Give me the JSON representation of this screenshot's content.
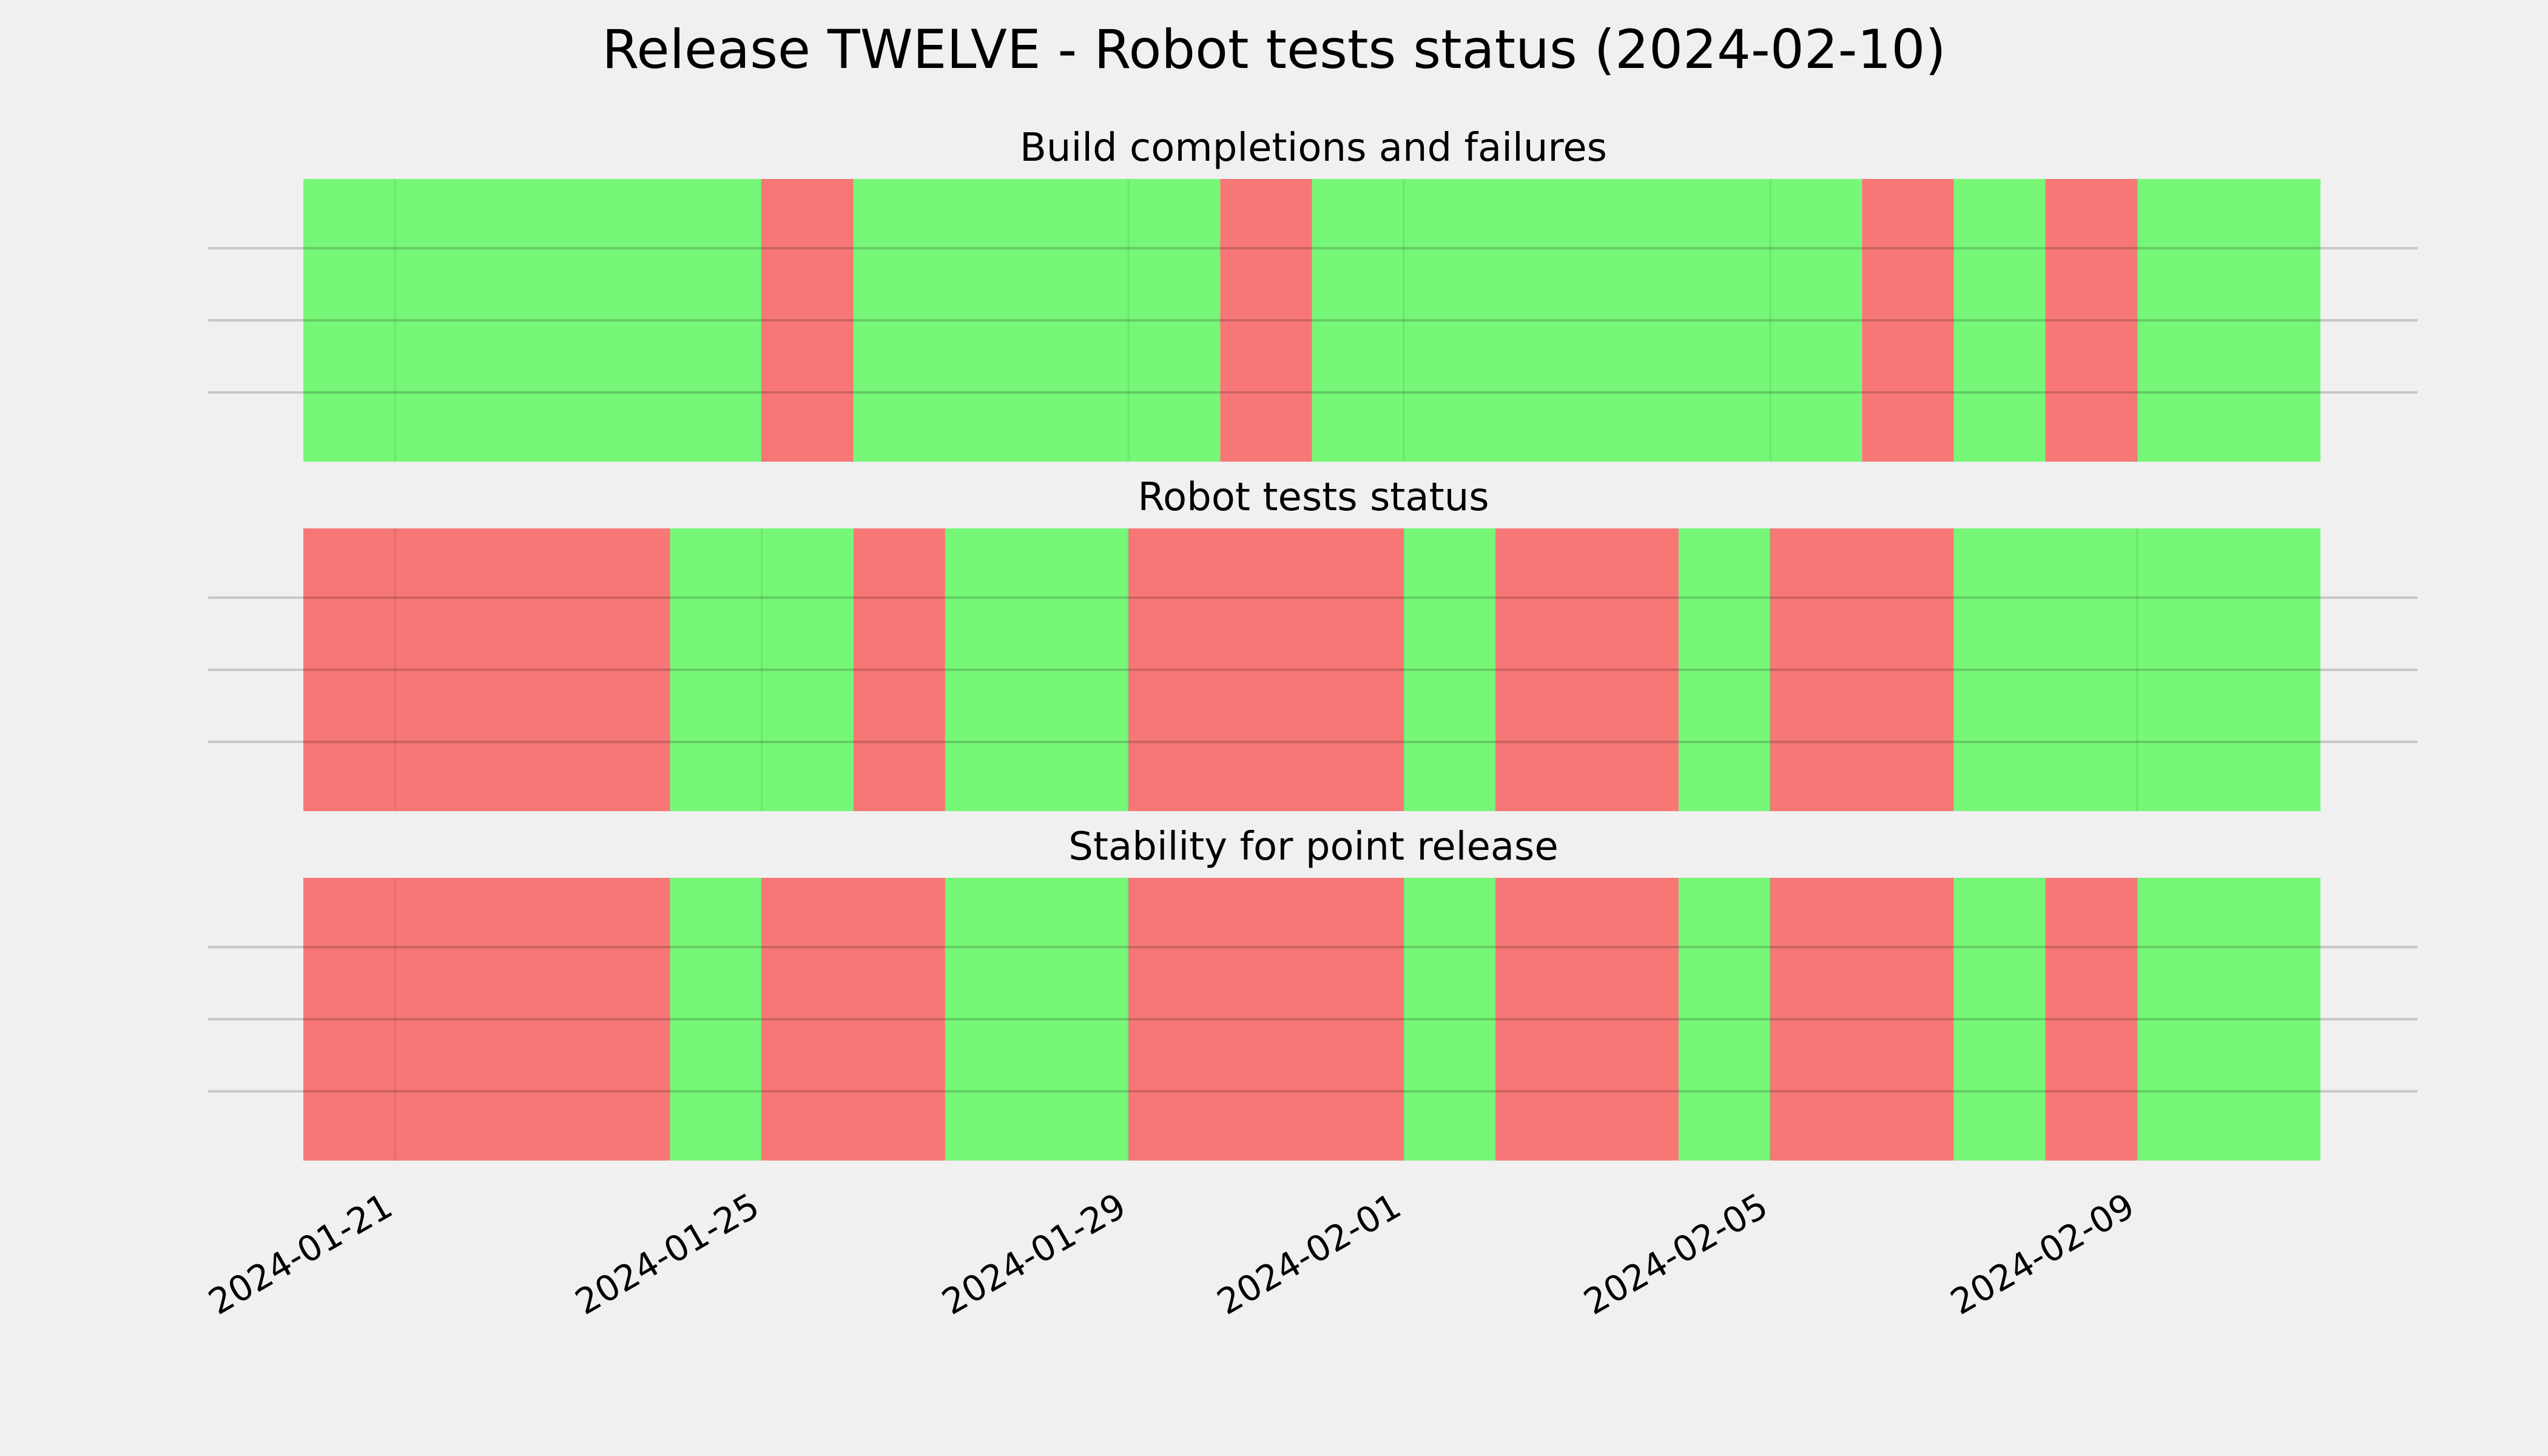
{
  "chart_data": {
    "type": "timeline",
    "title": "Release TWELVE - Robot tests status (2024-02-10)",
    "x_range": [
      "2024-01-20",
      "2024-02-11"
    ],
    "x_ticks": [
      "2024-01-21",
      "2024-01-25",
      "2024-01-29",
      "2024-02-01",
      "2024-02-05",
      "2024-02-09"
    ],
    "grid": true,
    "status_colors": {
      "pass": "#77f777",
      "fail": "#f77777"
    },
    "panels": [
      {
        "title": "Build completions and failures",
        "segments": [
          {
            "start": "2024-01-20",
            "end": "2024-01-25",
            "status": "pass"
          },
          {
            "start": "2024-01-25",
            "end": "2024-01-26",
            "status": "fail"
          },
          {
            "start": "2024-01-26",
            "end": "2024-01-30",
            "status": "pass"
          },
          {
            "start": "2024-01-30",
            "end": "2024-01-31",
            "status": "fail"
          },
          {
            "start": "2024-01-31",
            "end": "2024-02-06",
            "status": "pass"
          },
          {
            "start": "2024-02-06",
            "end": "2024-02-07",
            "status": "fail"
          },
          {
            "start": "2024-02-07",
            "end": "2024-02-08",
            "status": "pass"
          },
          {
            "start": "2024-02-08",
            "end": "2024-02-09",
            "status": "fail"
          },
          {
            "start": "2024-02-09",
            "end": "2024-02-11",
            "status": "pass"
          }
        ]
      },
      {
        "title": "Robot tests status",
        "segments": [
          {
            "start": "2024-01-20",
            "end": "2024-01-24",
            "status": "fail"
          },
          {
            "start": "2024-01-24",
            "end": "2024-01-26",
            "status": "pass"
          },
          {
            "start": "2024-01-26",
            "end": "2024-01-27",
            "status": "fail"
          },
          {
            "start": "2024-01-27",
            "end": "2024-01-29",
            "status": "pass"
          },
          {
            "start": "2024-01-29",
            "end": "2024-02-01",
            "status": "fail"
          },
          {
            "start": "2024-02-01",
            "end": "2024-02-02",
            "status": "pass"
          },
          {
            "start": "2024-02-02",
            "end": "2024-02-04",
            "status": "fail"
          },
          {
            "start": "2024-02-04",
            "end": "2024-02-05",
            "status": "pass"
          },
          {
            "start": "2024-02-05",
            "end": "2024-02-07",
            "status": "fail"
          },
          {
            "start": "2024-02-07",
            "end": "2024-02-11",
            "status": "pass"
          }
        ]
      },
      {
        "title": "Stability for point release",
        "segments": [
          {
            "start": "2024-01-20",
            "end": "2024-01-24",
            "status": "fail"
          },
          {
            "start": "2024-01-24",
            "end": "2024-01-25",
            "status": "pass"
          },
          {
            "start": "2024-01-25",
            "end": "2024-01-27",
            "status": "fail"
          },
          {
            "start": "2024-01-27",
            "end": "2024-01-29",
            "status": "pass"
          },
          {
            "start": "2024-01-29",
            "end": "2024-02-01",
            "status": "fail"
          },
          {
            "start": "2024-02-01",
            "end": "2024-02-02",
            "status": "pass"
          },
          {
            "start": "2024-02-02",
            "end": "2024-02-04",
            "status": "fail"
          },
          {
            "start": "2024-02-04",
            "end": "2024-02-05",
            "status": "pass"
          },
          {
            "start": "2024-02-05",
            "end": "2024-02-07",
            "status": "fail"
          },
          {
            "start": "2024-02-07",
            "end": "2024-02-08",
            "status": "pass"
          },
          {
            "start": "2024-02-08",
            "end": "2024-02-09",
            "status": "fail"
          },
          {
            "start": "2024-02-09",
            "end": "2024-02-11",
            "status": "pass"
          }
        ]
      }
    ]
  }
}
